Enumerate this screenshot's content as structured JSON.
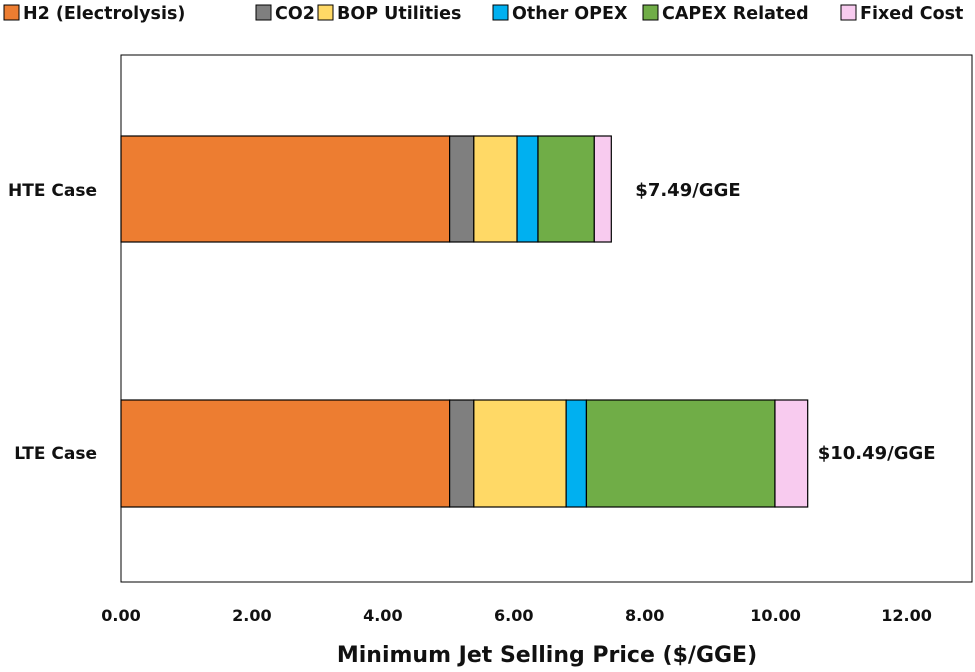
{
  "chart_data": {
    "type": "bar",
    "orientation": "horizontal",
    "stacked": true,
    "categories": [
      "HTE Case",
      "LTE Case"
    ],
    "series": [
      {
        "name": "H2 (Electrolysis)",
        "color": "#ED7D31",
        "values": [
          5.02,
          5.02
        ]
      },
      {
        "name": "CO2",
        "color": "#7F7F7F",
        "values": [
          0.37,
          0.37
        ]
      },
      {
        "name": "BOP Utilities",
        "color": "#FFD966",
        "values": [
          0.66,
          1.41
        ]
      },
      {
        "name": "Other OPEX",
        "color": "#00B0F0",
        "values": [
          0.32,
          0.31
        ]
      },
      {
        "name": "CAPEX Related",
        "color": "#70AD47",
        "values": [
          0.86,
          2.88
        ]
      },
      {
        "name": "Fixed Cost",
        "color": "#F8CBEF",
        "values": [
          0.26,
          0.5
        ]
      }
    ],
    "totals": [
      "$7.49/GGE",
      "$10.49/GGE"
    ],
    "xlabel": "Minimum Jet Selling Price ($/GGE)",
    "xlim": [
      0,
      13
    ],
    "xticks": [
      "0.00",
      "2.00",
      "4.00",
      "6.00",
      "8.00",
      "10.00",
      "12.00"
    ],
    "xtick_values": [
      0,
      2,
      4,
      6,
      8,
      10,
      12
    ],
    "grid": false,
    "legend_position": "top"
  }
}
